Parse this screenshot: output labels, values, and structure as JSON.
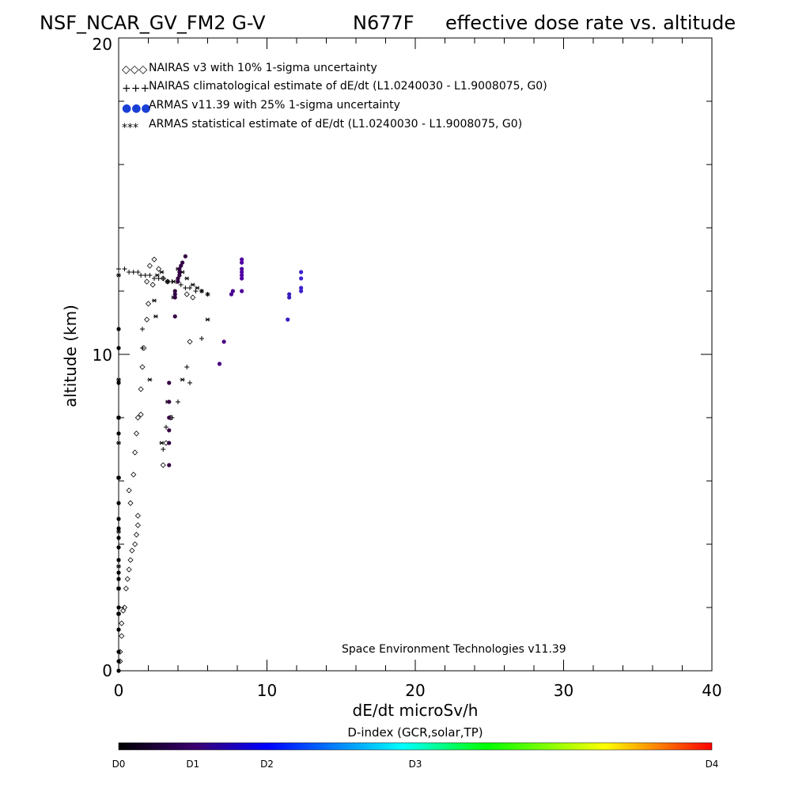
{
  "chart_data": {
    "type": "scatter",
    "title_left": "NSF_NCAR_GV_FM2 G-V",
    "title_mid": "N677F",
    "title_right": "effective dose rate vs. altitude",
    "xlabel": "dE/dt microSv/h",
    "ylabel": "altitude (km)",
    "xlim": [
      0,
      40
    ],
    "ylim": [
      0,
      20
    ],
    "x_ticks": [
      "0",
      "10",
      "20",
      "30",
      "40"
    ],
    "y_ticks": [
      "0",
      "10",
      "20"
    ],
    "credit": "Space Environment Technologies v11.39",
    "legend_position": "top-left",
    "legend": [
      {
        "marker": "◇◇◇",
        "label": "NAIRAS v3 with 10% 1-sigma uncertainty"
      },
      {
        "marker": "+++",
        "label": "NAIRAS climatological estimate of dE/dt (L1.0240030 - L1.9008075, G0)"
      },
      {
        "marker": "●●●",
        "label": "ARMAS v11.39 with 25% 1-sigma uncertainty",
        "color": "#1a3fd6"
      },
      {
        "marker": "***",
        "label": "ARMAS statistical estimate of dE/dt (L1.0240030 - L1.9008075, G0)"
      }
    ],
    "colorbar": {
      "title": "D-index (GCR,solar,TP)",
      "labels": [
        "D0",
        "D1",
        "D2",
        "D3",
        "D4"
      ],
      "label_positions": [
        0,
        0.125,
        0.25,
        0.5,
        1.0
      ],
      "colors": [
        "#000000",
        "#3a0070",
        "#0000ff",
        "#00ffff",
        "#00ff00",
        "#ffff00",
        "#ff0000"
      ]
    },
    "series": [
      {
        "name": "NAIRAS v3",
        "marker": "diamond",
        "points": [
          [
            0.1,
            0.3
          ],
          [
            0.1,
            0.6
          ],
          [
            0.2,
            1.1
          ],
          [
            0.2,
            1.5
          ],
          [
            0.3,
            1.9
          ],
          [
            0.4,
            2.0
          ],
          [
            0.5,
            2.6
          ],
          [
            0.6,
            2.9
          ],
          [
            0.7,
            3.2
          ],
          [
            0.8,
            3.5
          ],
          [
            0.9,
            3.8
          ],
          [
            1.1,
            4.0
          ],
          [
            1.2,
            4.3
          ],
          [
            1.3,
            4.6
          ],
          [
            1.3,
            4.9
          ],
          [
            0.8,
            5.3
          ],
          [
            0.7,
            5.7
          ],
          [
            1.0,
            6.2
          ],
          [
            1.1,
            6.9
          ],
          [
            1.2,
            7.5
          ],
          [
            1.3,
            8.0
          ],
          [
            1.5,
            8.1
          ],
          [
            1.5,
            8.9
          ],
          [
            1.6,
            9.6
          ],
          [
            1.7,
            10.2
          ],
          [
            1.9,
            11.1
          ],
          [
            2.0,
            11.6
          ],
          [
            2.3,
            12.2
          ],
          [
            1.9,
            12.3
          ],
          [
            2.1,
            12.8
          ],
          [
            2.4,
            13.0
          ],
          [
            2.7,
            12.7
          ],
          [
            3.0,
            12.4
          ],
          [
            3.3,
            12.3
          ],
          [
            4.6,
            11.9
          ],
          [
            5.0,
            11.8
          ],
          [
            4.8,
            10.4
          ],
          [
            3.5,
            8.0
          ],
          [
            3.2,
            7.2
          ],
          [
            3.0,
            6.5
          ]
        ]
      },
      {
        "name": "NAIRAS climatological estimate",
        "marker": "plus",
        "points": [
          [
            0.0,
            12.7
          ],
          [
            0.4,
            12.7
          ],
          [
            0.7,
            12.6
          ],
          [
            1.0,
            12.6
          ],
          [
            1.3,
            12.6
          ],
          [
            1.5,
            12.5
          ],
          [
            1.8,
            12.5
          ],
          [
            2.1,
            12.5
          ],
          [
            2.4,
            12.4
          ],
          [
            2.7,
            12.4
          ],
          [
            3.0,
            12.4
          ],
          [
            3.3,
            12.3
          ],
          [
            3.6,
            12.3
          ],
          [
            3.9,
            12.3
          ],
          [
            4.2,
            12.2
          ],
          [
            4.5,
            12.1
          ],
          [
            4.8,
            12.1
          ],
          [
            5.2,
            12.0
          ],
          [
            5.6,
            12.0
          ],
          [
            6.0,
            11.9
          ],
          [
            1.6,
            10.8
          ],
          [
            1.6,
            10.2
          ],
          [
            5.6,
            10.5
          ],
          [
            4.6,
            9.6
          ],
          [
            4.8,
            9.1
          ],
          [
            4.0,
            8.5
          ],
          [
            3.6,
            8.0
          ],
          [
            3.2,
            7.7
          ],
          [
            3.0,
            7.0
          ]
        ]
      },
      {
        "name": "ARMAS statistical estimate",
        "marker": "asterisk",
        "points": [
          [
            0.0,
            12.5
          ],
          [
            2.6,
            12.5
          ],
          [
            2.9,
            12.6
          ],
          [
            3.3,
            12.3
          ],
          [
            3.7,
            12.3
          ],
          [
            4.0,
            12.7
          ],
          [
            4.3,
            12.6
          ],
          [
            4.6,
            12.4
          ],
          [
            5.0,
            12.2
          ],
          [
            5.3,
            12.1
          ],
          [
            5.6,
            12.0
          ],
          [
            6.0,
            11.9
          ],
          [
            2.4,
            11.7
          ],
          [
            2.5,
            11.2
          ],
          [
            3.7,
            11.8
          ],
          [
            6.0,
            11.1
          ],
          [
            0.0,
            9.2
          ],
          [
            2.1,
            9.2
          ],
          [
            4.3,
            9.2
          ],
          [
            3.3,
            8.5
          ],
          [
            0.0,
            8.0
          ],
          [
            0.0,
            7.2
          ],
          [
            2.9,
            7.2
          ],
          [
            0.0,
            6.1
          ],
          [
            0.0,
            4.4
          ],
          [
            0.0,
            3.3
          ],
          [
            0.0,
            2.6
          ],
          [
            0.0,
            1.8
          ]
        ]
      },
      {
        "name": "ARMAS v11.39",
        "marker": "dot",
        "points": [
          [
            3.4,
            6.5
          ],
          [
            3.4,
            7.2
          ],
          [
            3.4,
            7.6
          ],
          [
            3.4,
            8.0
          ],
          [
            3.4,
            8.5
          ],
          [
            3.4,
            9.1
          ],
          [
            3.8,
            11.2
          ],
          [
            3.8,
            11.8
          ],
          [
            3.8,
            11.9
          ],
          [
            3.8,
            12.0
          ],
          [
            4.0,
            12.3
          ],
          [
            4.0,
            12.4
          ],
          [
            4.1,
            12.5
          ],
          [
            4.1,
            12.6
          ],
          [
            4.1,
            12.7
          ],
          [
            4.2,
            12.8
          ],
          [
            4.3,
            12.9
          ],
          [
            4.5,
            13.1
          ],
          [
            6.8,
            9.7
          ],
          [
            7.1,
            10.4
          ],
          [
            7.6,
            11.9
          ],
          [
            7.7,
            12.0
          ],
          [
            8.3,
            12.0
          ],
          [
            8.3,
            12.4
          ],
          [
            8.3,
            12.5
          ],
          [
            8.3,
            12.6
          ],
          [
            8.3,
            12.7
          ],
          [
            8.3,
            12.9
          ],
          [
            8.3,
            13.0
          ],
          [
            11.4,
            11.1
          ],
          [
            11.5,
            11.8
          ],
          [
            11.5,
            11.9
          ],
          [
            12.3,
            12.0
          ],
          [
            12.3,
            12.1
          ],
          [
            12.3,
            12.4
          ],
          [
            12.3,
            12.6
          ],
          [
            0.0,
            10.2
          ],
          [
            0.0,
            10.8
          ],
          [
            0.0,
            9.1
          ],
          [
            0.0,
            8.0
          ],
          [
            0.0,
            7.5
          ],
          [
            0.0,
            6.1
          ],
          [
            0.0,
            5.3
          ],
          [
            0.0,
            4.8
          ],
          [
            0.0,
            4.5
          ],
          [
            0.0,
            4.2
          ],
          [
            0.0,
            3.9
          ],
          [
            0.0,
            3.5
          ],
          [
            0.0,
            3.1
          ],
          [
            0.0,
            2.9
          ],
          [
            0.0,
            2.6
          ],
          [
            0.0,
            2.0
          ],
          [
            0.0,
            1.8
          ],
          [
            0.0,
            1.3
          ],
          [
            0.0,
            0.6
          ],
          [
            0.0,
            0.3
          ],
          [
            0.0,
            0.0
          ]
        ],
        "point_colors": [
          "#330044",
          "#330044",
          "#330044",
          "#330044",
          "#330044",
          "#330044",
          "#330044",
          "#330044",
          "#330044",
          "#330044",
          "#330044",
          "#330044",
          "#330044",
          "#330044",
          "#330044",
          "#330044",
          "#330044",
          "#330044",
          "#4a0080",
          "#4a0080",
          "#4a0090",
          "#4a0090",
          "#5000a0",
          "#5000a0",
          "#5000a0",
          "#5000a0",
          "#5000a0",
          "#5000a0",
          "#5000a0",
          "#3a1cc0",
          "#3a1cc0",
          "#3a1cc0",
          "#3a22cc",
          "#3a22cc",
          "#3a22cc",
          "#3a22cc",
          "#000000",
          "#000000",
          "#000000",
          "#000000",
          "#000000",
          "#000000",
          "#000000",
          "#000000",
          "#000000",
          "#000000",
          "#000000",
          "#000000",
          "#000000",
          "#000000",
          "#000000",
          "#000000",
          "#000000",
          "#000000",
          "#000000",
          "#000000",
          "#000000"
        ]
      }
    ]
  }
}
